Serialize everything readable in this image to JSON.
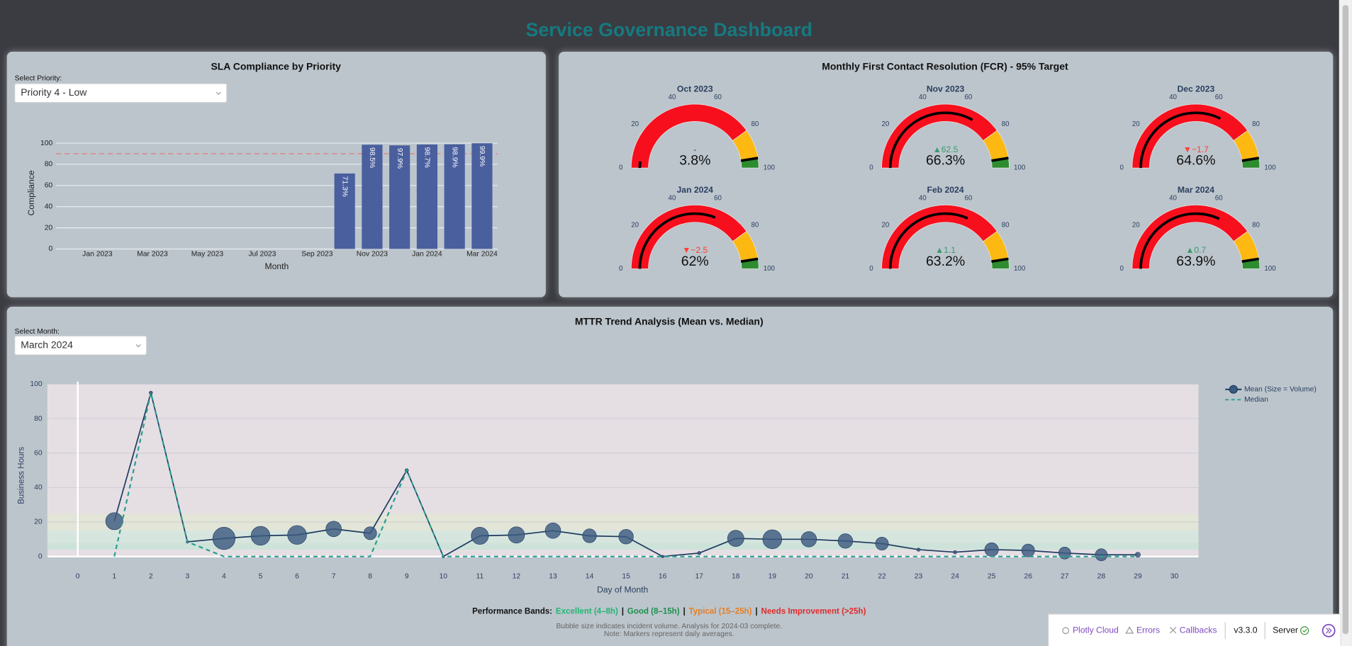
{
  "header": {
    "title": "Service Governance Dashboard"
  },
  "controls": {
    "priority": {
      "label": "Select Priority:",
      "value": "Priority 4 - Low"
    },
    "month": {
      "label": "Select Month:",
      "value": "March 2024"
    }
  },
  "chart_data": [
    {
      "type": "bar",
      "title": "SLA Compliance by Priority",
      "xlabel": "Month",
      "ylabel": "Compliance",
      "categories": [
        "Jan 2023",
        null,
        "Mar 2023",
        null,
        "May 2023",
        null,
        "Jul 2023",
        null,
        "Sep 2023",
        null,
        "Nov 2023",
        null,
        "Jan 2024",
        null,
        "Mar 2024"
      ],
      "values": [
        null,
        null,
        null,
        null,
        null,
        null,
        null,
        null,
        null,
        71.3,
        98.5,
        97.9,
        98.7,
        98.9,
        99.9
      ],
      "value_labels": [
        null,
        null,
        null,
        null,
        null,
        null,
        null,
        null,
        null,
        "71.3%",
        "98.5%",
        "97.9%",
        "98.7%",
        "98.9%",
        "99.9%"
      ],
      "color": "#4a5f9e",
      "ylim": [
        0,
        105
      ],
      "yticks": [
        0,
        20,
        40,
        60,
        80,
        100
      ],
      "grid": true,
      "reference_line": 90,
      "reference_color": "#d98a8a"
    },
    {
      "type": "gauge",
      "title": "Monthly First Contact Resolution (FCR) - 95% Target",
      "range": [
        0,
        100
      ],
      "ticks": [
        0,
        20,
        40,
        60,
        80,
        100
      ],
      "steps": [
        {
          "range": [
            0,
            80
          ],
          "color": "#f70f1d"
        },
        {
          "range": [
            80,
            95
          ],
          "color": "#fdb811"
        },
        {
          "range": [
            95,
            100
          ],
          "color": "#2c8c2f"
        }
      ],
      "threshold": 95,
      "bar_color": "#000000",
      "gauges": [
        {
          "title": "Oct 2023",
          "value": 3.8,
          "value_label": "3.8%",
          "delta": null,
          "delta_label": "-"
        },
        {
          "title": "Nov 2023",
          "value": 66.3,
          "value_label": "66.3%",
          "delta": 62.5,
          "delta_label": "▲62.5"
        },
        {
          "title": "Dec 2023",
          "value": 64.6,
          "value_label": "64.6%",
          "delta": -1.7,
          "delta_label": "▼−1.7"
        },
        {
          "title": "Jan 2024",
          "value": 62,
          "value_label": "62%",
          "delta": -2.5,
          "delta_label": "▼−2.5"
        },
        {
          "title": "Feb 2024",
          "value": 63.2,
          "value_label": "63.2%",
          "delta": 1.1,
          "delta_label": "▲1.1"
        },
        {
          "title": "Mar 2024",
          "value": 63.9,
          "value_label": "63.9%",
          "delta": 0.7,
          "delta_label": "▲0.7"
        }
      ]
    },
    {
      "type": "line",
      "title": "MTTR Trend Analysis (Mean vs. Median)",
      "xlabel": "Day of Month",
      "ylabel": "Business Hours",
      "x": [
        1,
        2,
        3,
        4,
        5,
        6,
        7,
        8,
        9,
        10,
        11,
        12,
        13,
        14,
        15,
        16,
        17,
        18,
        19,
        20,
        21,
        22,
        23,
        24,
        25,
        26,
        27,
        28,
        29
      ],
      "series": [
        {
          "name": "Mean (Size = Volume)",
          "color": "#1f3a5f",
          "marker_color": "#3d5a80",
          "values": [
            20.5,
            95,
            8.5,
            10.5,
            12,
            12.5,
            16,
            13.5,
            50,
            0,
            12,
            12.5,
            15,
            12,
            11.5,
            0,
            2,
            10.5,
            10,
            10,
            9,
            7.5,
            4,
            2.5,
            4,
            3.5,
            2,
            1,
            1
          ],
          "sizes": [
            20,
            4,
            3,
            26,
            22,
            22,
            18,
            15,
            4,
            3,
            20,
            19,
            18,
            16,
            17,
            3,
            4,
            19,
            22,
            18,
            17,
            15,
            4,
            4,
            16,
            15,
            14,
            14,
            6
          ]
        },
        {
          "name": "Median",
          "color": "#2a9d8f",
          "dash": true,
          "values": [
            0,
            95,
            8.5,
            0,
            0,
            0,
            0,
            0,
            50,
            0,
            0,
            0,
            0,
            0,
            0,
            0,
            0,
            0,
            0,
            0,
            0,
            0,
            0,
            0,
            0,
            0,
            0,
            0,
            0
          ]
        }
      ],
      "xlim": [
        -0.83,
        30.66
      ],
      "ylim": [
        0,
        100
      ],
      "xticks": [
        0,
        1,
        2,
        3,
        4,
        5,
        6,
        7,
        8,
        9,
        10,
        11,
        12,
        13,
        14,
        15,
        16,
        17,
        18,
        19,
        20,
        21,
        22,
        23,
        24,
        25,
        26,
        27,
        28,
        29,
        30
      ],
      "yticks": [
        0,
        20,
        40,
        60,
        80,
        100
      ],
      "legend": "right",
      "bands_title": "Performance Bands:",
      "band_separator": "|",
      "bands": [
        {
          "name": "Excellent (4–8h)",
          "range": [
            4,
            8
          ],
          "fill": "#cde3da",
          "color": "#22b573"
        },
        {
          "name": "Good (8–15h)",
          "range": [
            8,
            15
          ],
          "fill": "#d6e6df",
          "color": "#1e8f4e"
        },
        {
          "name": "Typical (15–25h)",
          "range": [
            15,
            25
          ],
          "fill": "#e2e5d7",
          "color": "#e67e22"
        },
        {
          "name": "Needs Improvement (>25h)",
          "range": [
            25,
            100
          ],
          "fill": "#e5dfe4",
          "color": "#e02a2a"
        }
      ],
      "notes": [
        "Bubble size indicates incident volume. Analysis for 2024-03 complete.",
        "Note: Markers represent daily averages."
      ]
    }
  ],
  "devtools": {
    "items": [
      "Plotly Cloud",
      "Errors",
      "Callbacks"
    ],
    "version": "v3.3.0",
    "server": "Server"
  }
}
